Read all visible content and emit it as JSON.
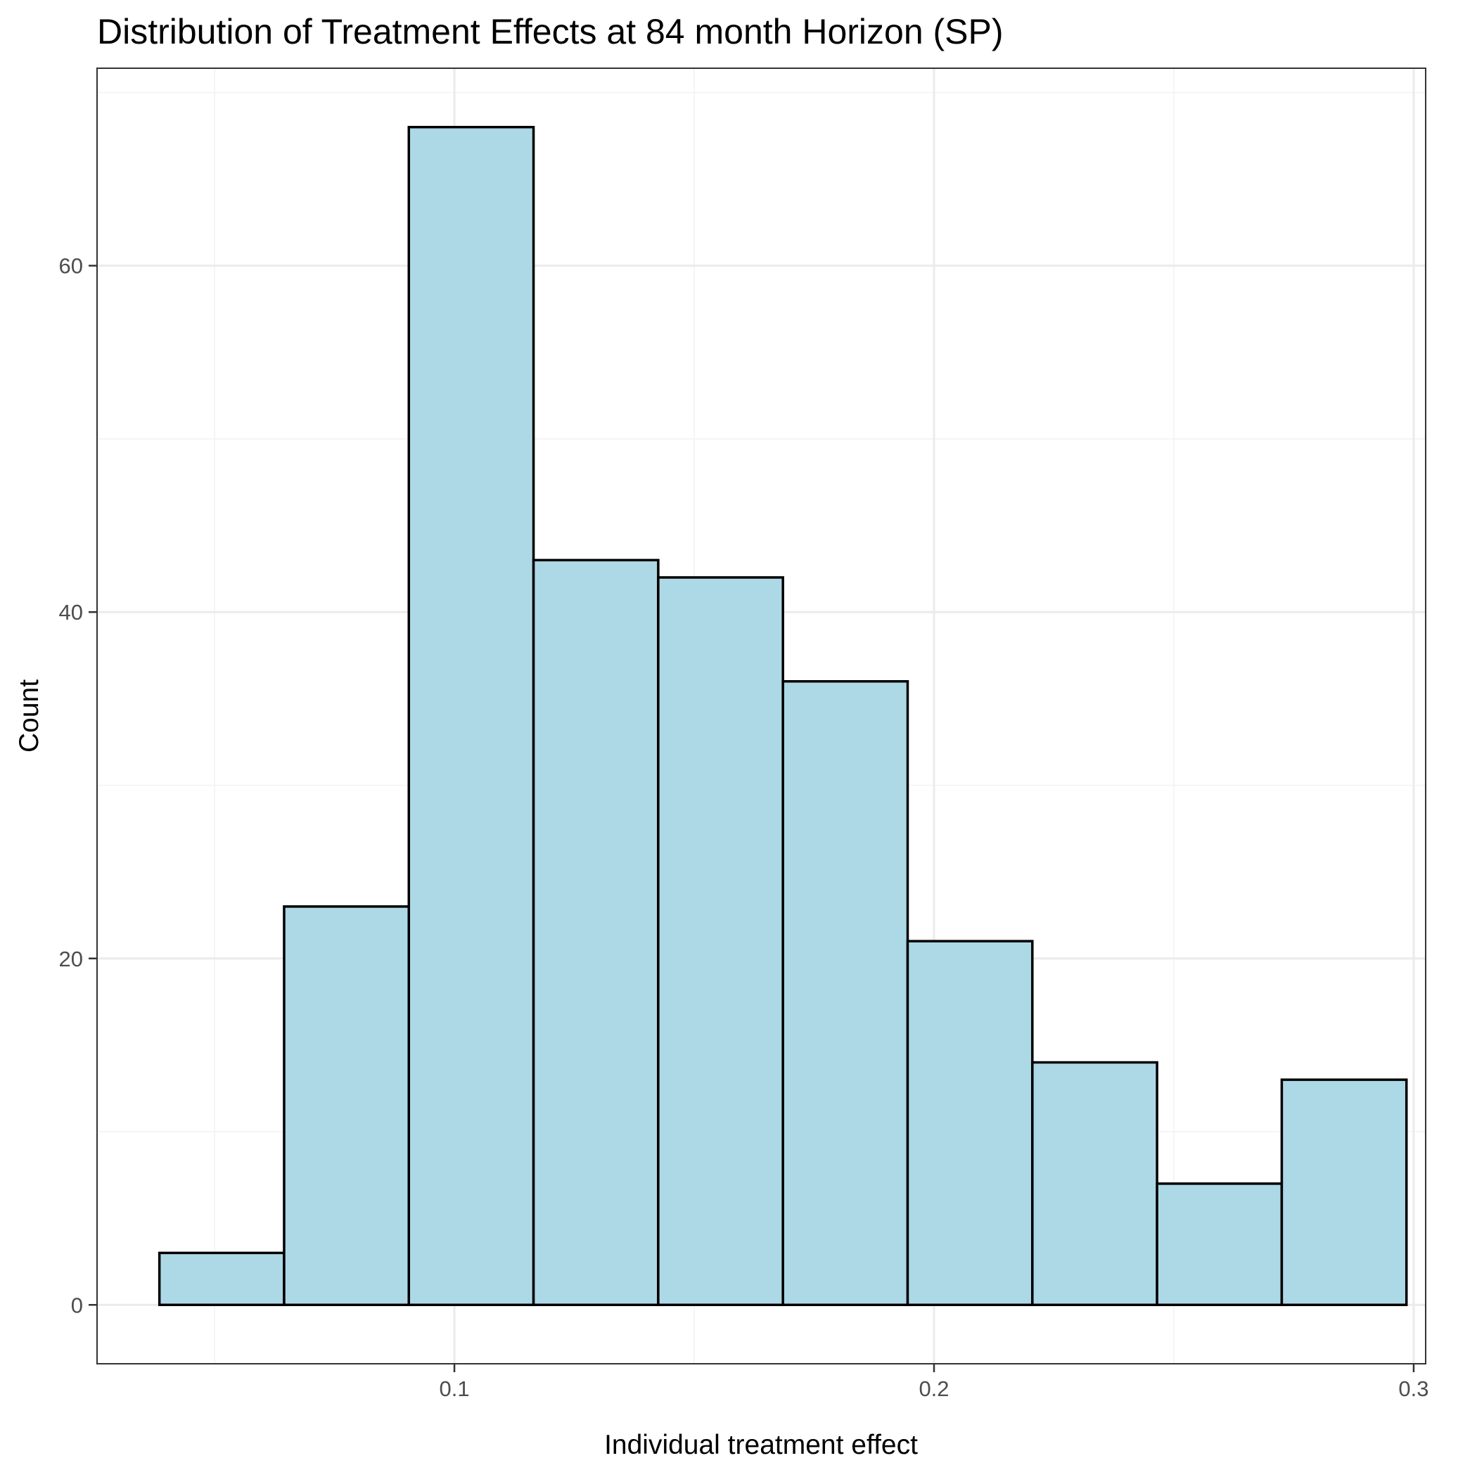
{
  "chart_data": {
    "type": "histogram",
    "title": "Distribution of Treatment Effects at 84 month Horizon (SP)",
    "xlabel": "Individual treatment effect",
    "ylabel": "Count",
    "bins": [
      {
        "x0": 0.0385,
        "x1": 0.0645,
        "count": 3
      },
      {
        "x0": 0.0645,
        "x1": 0.0905,
        "count": 23
      },
      {
        "x0": 0.0905,
        "x1": 0.1165,
        "count": 68
      },
      {
        "x0": 0.1165,
        "x1": 0.1425,
        "count": 43
      },
      {
        "x0": 0.1425,
        "x1": 0.1685,
        "count": 42
      },
      {
        "x0": 0.1685,
        "x1": 0.1945,
        "count": 36
      },
      {
        "x0": 0.1945,
        "x1": 0.2205,
        "count": 21
      },
      {
        "x0": 0.2205,
        "x1": 0.2465,
        "count": 14
      },
      {
        "x0": 0.2465,
        "x1": 0.2725,
        "count": 7
      },
      {
        "x0": 0.2725,
        "x1": 0.2985,
        "count": 13
      }
    ],
    "xlim": [
      0.0255,
      0.3025
    ],
    "ylim": [
      -3.4,
      71.4
    ],
    "x_ticks": [
      {
        "value": 0.1,
        "label": "0.1"
      },
      {
        "value": 0.2,
        "label": "0.2"
      },
      {
        "value": 0.3,
        "label": "0.3"
      }
    ],
    "x_minor_ticks": [
      0.05,
      0.15,
      0.25
    ],
    "y_ticks": [
      {
        "value": 0,
        "label": "0"
      },
      {
        "value": 20,
        "label": "20"
      },
      {
        "value": 40,
        "label": "40"
      },
      {
        "value": 60,
        "label": "60"
      }
    ],
    "y_minor_ticks": [
      10,
      30,
      50,
      70
    ],
    "grid": true,
    "legend": "none",
    "colors": {
      "bar_fill": "#add8e6",
      "bar_stroke": "#000000"
    }
  }
}
